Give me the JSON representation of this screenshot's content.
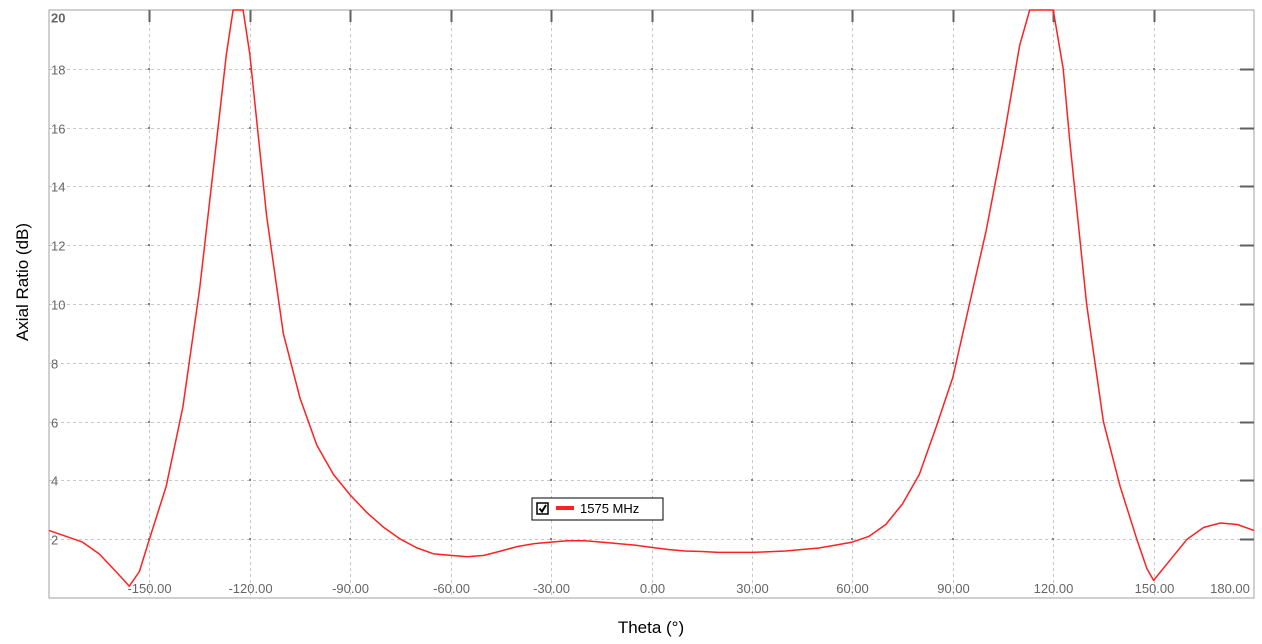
{
  "chart_data": {
    "type": "line",
    "title": "",
    "xlabel": "Theta (°)",
    "ylabel": "Axial Ratio (dB)",
    "xlim": [
      -180,
      180
    ],
    "ylim": [
      0,
      20
    ],
    "grid": true,
    "x_tick_labels": [
      "-150.00",
      "-120.00",
      "-90.00",
      "-60.00",
      "-30.00",
      "0.00",
      "30.00",
      "60.00",
      "90.00",
      "120.00",
      "150.00",
      "180.00"
    ],
    "x_ticks": [
      -150,
      -120,
      -90,
      -60,
      -30,
      0,
      30,
      60,
      90,
      120,
      150,
      180
    ],
    "y_tick_labels": [
      "2",
      "4",
      "6",
      "8",
      "10",
      "12",
      "14",
      "16",
      "18",
      "20"
    ],
    "y_ticks": [
      2,
      4,
      6,
      8,
      10,
      12,
      14,
      16,
      18,
      20
    ],
    "legend_position": "center",
    "series": [
      {
        "name": "1575 MHz",
        "color": "#ff2020",
        "checked": true,
        "x": [
          -180,
          -170,
          -165,
          -160,
          -156,
          -153,
          -150,
          -145,
          -140,
          -135,
          -130,
          -127,
          -125,
          -122,
          -120,
          -115,
          -110,
          -105,
          -100,
          -95,
          -90,
          -85,
          -80,
          -75,
          -70,
          -65,
          -60,
          -55,
          -50,
          -45,
          -40,
          -35,
          -30,
          -25,
          -20,
          -15,
          -10,
          -5,
          0,
          5,
          10,
          15,
          20,
          25,
          30,
          35,
          40,
          45,
          50,
          55,
          60,
          65,
          70,
          75,
          80,
          85,
          90,
          95,
          100,
          105,
          110,
          113,
          115,
          118,
          120,
          123,
          125,
          130,
          135,
          140,
          145,
          148,
          150,
          155,
          160,
          165,
          170,
          175,
          180
        ],
        "y": [
          2.3,
          1.9,
          1.5,
          0.9,
          0.4,
          0.9,
          2.0,
          3.8,
          6.5,
          10.5,
          15.5,
          18.5,
          20,
          20,
          18.5,
          13.0,
          9.0,
          6.8,
          5.2,
          4.2,
          3.5,
          2.9,
          2.4,
          2.0,
          1.7,
          1.5,
          1.45,
          1.4,
          1.45,
          1.6,
          1.75,
          1.85,
          1.9,
          1.95,
          1.95,
          1.9,
          1.85,
          1.8,
          1.72,
          1.65,
          1.6,
          1.58,
          1.55,
          1.55,
          1.55,
          1.57,
          1.6,
          1.65,
          1.7,
          1.8,
          1.9,
          2.1,
          2.5,
          3.2,
          4.2,
          5.8,
          7.5,
          10.0,
          12.5,
          15.5,
          18.8,
          20,
          20,
          20,
          20,
          18.0,
          15.5,
          10.0,
          6.0,
          3.8,
          2.0,
          1.0,
          0.6,
          1.3,
          2.0,
          2.4,
          2.55,
          2.5,
          2.3
        ]
      }
    ]
  }
}
